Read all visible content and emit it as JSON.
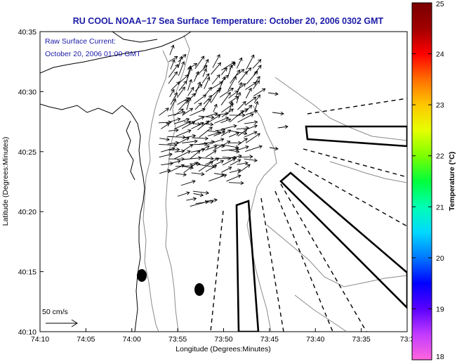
{
  "title": "RU COOL  NOAA−17  Sea Surface Temperature:  October 20, 2006 0302 GMT",
  "annotation": {
    "line1": "Raw Surface Current:",
    "line2": "October 20, 2006 01:00 GMT"
  },
  "scale": {
    "label": "50 cm/s"
  },
  "axes": {
    "xlabel": "Longitude (Degrees:Minutes)",
    "ylabel": "Latitude (Degrees:Minutes)",
    "xticks": [
      "74:10",
      "74:05",
      "74:00",
      "73:55",
      "73:50",
      "73:45",
      "73:40",
      "73:35",
      "73:3"
    ],
    "yticks": [
      "40:35",
      "40:30",
      "40:25",
      "40:20",
      "40:15",
      "40:10"
    ]
  },
  "colorbar": {
    "label": "Temperature (°C)",
    "ticks": [
      "25",
      "24",
      "23",
      "22",
      "21",
      "20",
      "19",
      "18"
    ],
    "min": 18,
    "max": 25,
    "colors": [
      "#ff66dd",
      "#c23bff",
      "#5a00ff",
      "#0000ff",
      "#0077ff",
      "#00d9ff",
      "#00ffb4",
      "#00ff3c",
      "#7cff00",
      "#e6ff00",
      "#ffc800",
      "#ff6e00",
      "#ff0000",
      "#a00000",
      "#7a0000"
    ]
  },
  "colors": {
    "title": "#1a1aa6",
    "annotation": "#1a1aa6",
    "land_contour": "#000000",
    "bathymetry": "#888888",
    "vectors": "#000000"
  }
}
